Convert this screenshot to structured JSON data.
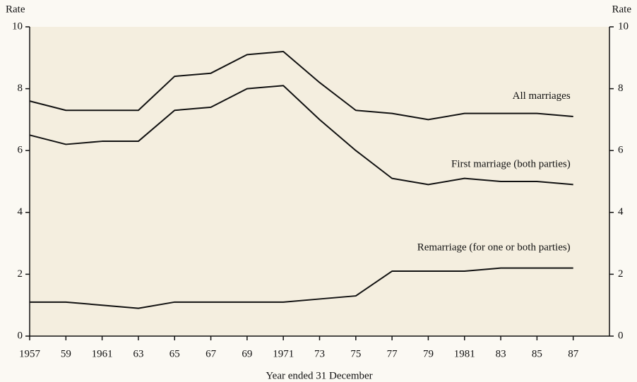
{
  "chart_data": {
    "type": "line",
    "x_label": "Year ended 31 December",
    "y_label": "Rate",
    "y2_label": "Rate",
    "x": [
      1957,
      1959,
      1961,
      1963,
      1965,
      1967,
      1969,
      1971,
      1973,
      1975,
      1977,
      1979,
      1981,
      1983,
      1985,
      1987
    ],
    "series": [
      {
        "name": "All marriages",
        "color": "#111111",
        "values": [
          7.6,
          7.3,
          7.3,
          7.3,
          8.4,
          8.5,
          9.1,
          9.2,
          8.2,
          7.3,
          7.2,
          7.0,
          7.2,
          7.2,
          7.2,
          7.1
        ]
      },
      {
        "name": "First marriage (both parties)",
        "color": "#111111",
        "values": [
          6.5,
          6.2,
          6.3,
          6.3,
          7.3,
          7.4,
          8.0,
          8.1,
          7.0,
          6.0,
          5.1,
          4.9,
          5.1,
          5.0,
          5.0,
          4.9
        ]
      },
      {
        "name": "Remarriage (for one or both parties)",
        "color": "#111111",
        "values": [
          1.1,
          1.1,
          1.0,
          0.9,
          1.1,
          1.1,
          1.1,
          1.1,
          1.2,
          1.3,
          2.1,
          2.1,
          2.1,
          2.2,
          2.2,
          2.2
        ]
      }
    ],
    "xlim": [
      1957,
      1989
    ],
    "xticks": [
      1957,
      {
        "value": 1959,
        "label": "59"
      },
      1961,
      {
        "value": 1963,
        "label": "63"
      },
      {
        "value": 1965,
        "label": "65"
      },
      {
        "value": 1967,
        "label": "67"
      },
      {
        "value": 1969,
        "label": "69"
      },
      1971,
      {
        "value": 1973,
        "label": "73"
      },
      {
        "value": 1975,
        "label": "75"
      },
      {
        "value": 1977,
        "label": "77"
      },
      {
        "value": 1979,
        "label": "79"
      },
      1981,
      {
        "value": 1983,
        "label": "83"
      },
      {
        "value": 1985,
        "label": "85"
      },
      {
        "value": 1987,
        "label": "87"
      }
    ],
    "ylim": [
      0,
      10
    ],
    "yticks": [
      0,
      2,
      4,
      6,
      8,
      10
    ],
    "y2lim": [
      0,
      10
    ],
    "y2ticks": [
      0,
      2,
      4,
      6,
      8,
      10
    ],
    "grid": false
  }
}
